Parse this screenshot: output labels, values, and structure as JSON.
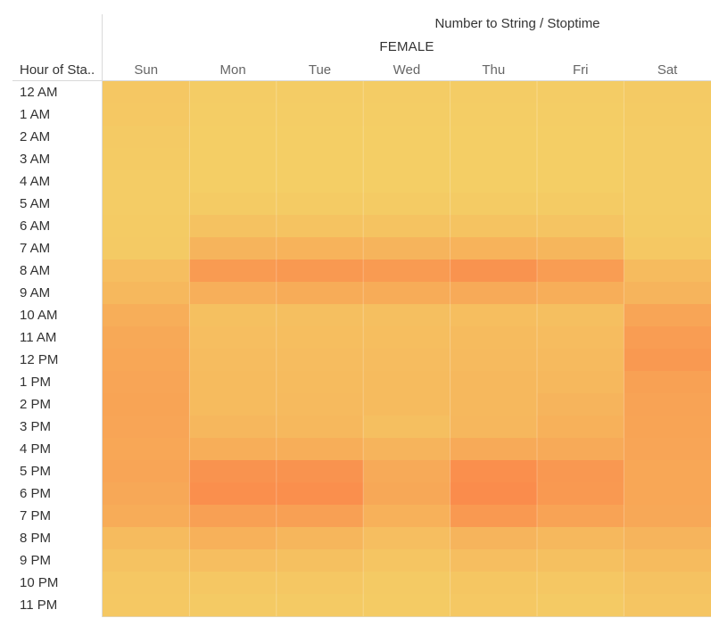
{
  "chart_data": {
    "type": "heatmap",
    "title": "Number to String / Stoptime",
    "group": "FEMALE",
    "row_header": "Hour of Sta..",
    "columns": [
      "Sun",
      "Mon",
      "Tue",
      "Wed",
      "Thu",
      "Fri",
      "Sat"
    ],
    "rows": [
      "12 AM",
      "1 AM",
      "2 AM",
      "3 AM",
      "4 AM",
      "5 AM",
      "6 AM",
      "7 AM",
      "8 AM",
      "9 AM",
      "10 AM",
      "11 AM",
      "12 PM",
      "1 PM",
      "2 PM",
      "3 PM",
      "4 PM",
      "5 PM",
      "6 PM",
      "7 PM",
      "8 PM",
      "9 PM",
      "10 PM",
      "11 PM"
    ],
    "values": [
      [
        0.12,
        0.05,
        0.05,
        0.05,
        0.05,
        0.05,
        0.08
      ],
      [
        0.1,
        0.03,
        0.03,
        0.03,
        0.03,
        0.03,
        0.06
      ],
      [
        0.08,
        0.02,
        0.02,
        0.02,
        0.02,
        0.02,
        0.05
      ],
      [
        0.06,
        0.02,
        0.02,
        0.02,
        0.02,
        0.02,
        0.04
      ],
      [
        0.05,
        0.02,
        0.02,
        0.02,
        0.02,
        0.02,
        0.04
      ],
      [
        0.05,
        0.06,
        0.06,
        0.06,
        0.06,
        0.06,
        0.05
      ],
      [
        0.06,
        0.2,
        0.18,
        0.18,
        0.18,
        0.16,
        0.06
      ],
      [
        0.08,
        0.4,
        0.42,
        0.4,
        0.42,
        0.38,
        0.1
      ],
      [
        0.25,
        0.78,
        0.8,
        0.78,
        0.9,
        0.75,
        0.3
      ],
      [
        0.35,
        0.48,
        0.52,
        0.52,
        0.55,
        0.5,
        0.4
      ],
      [
        0.5,
        0.22,
        0.24,
        0.24,
        0.26,
        0.24,
        0.62
      ],
      [
        0.56,
        0.25,
        0.26,
        0.26,
        0.3,
        0.28,
        0.75
      ],
      [
        0.6,
        0.28,
        0.28,
        0.28,
        0.32,
        0.32,
        0.8
      ],
      [
        0.62,
        0.3,
        0.3,
        0.3,
        0.34,
        0.35,
        0.68
      ],
      [
        0.64,
        0.3,
        0.32,
        0.3,
        0.35,
        0.4,
        0.65
      ],
      [
        0.62,
        0.36,
        0.34,
        0.24,
        0.36,
        0.45,
        0.64
      ],
      [
        0.6,
        0.5,
        0.5,
        0.4,
        0.55,
        0.55,
        0.62
      ],
      [
        0.62,
        0.9,
        0.9,
        0.55,
        0.95,
        0.82,
        0.6
      ],
      [
        0.58,
        0.95,
        0.95,
        0.58,
        1.0,
        0.8,
        0.6
      ],
      [
        0.52,
        0.7,
        0.7,
        0.45,
        0.8,
        0.65,
        0.58
      ],
      [
        0.3,
        0.45,
        0.38,
        0.25,
        0.4,
        0.35,
        0.4
      ],
      [
        0.2,
        0.25,
        0.22,
        0.15,
        0.25,
        0.22,
        0.3
      ],
      [
        0.12,
        0.12,
        0.12,
        0.08,
        0.14,
        0.12,
        0.2
      ],
      [
        0.1,
        0.08,
        0.08,
        0.06,
        0.1,
        0.08,
        0.15
      ]
    ],
    "value_range": [
      0,
      1
    ],
    "color_scale": [
      "#f4cf66",
      "#fa8c4c"
    ],
    "grid": false,
    "legend": "none"
  }
}
